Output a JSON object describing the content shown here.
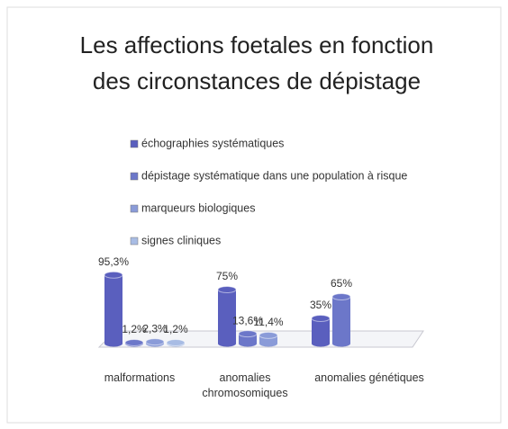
{
  "chart_data": {
    "type": "bar",
    "title": "Les affections foetales en fonction des circonstances de dépistage",
    "categories": [
      "malformations",
      "anomalies chromosomiques",
      "anomalies génétiques"
    ],
    "series": [
      {
        "name": "échographies systématiques",
        "color": "#5a5fbe",
        "values": [
          95.3,
          75,
          35
        ],
        "value_labels": [
          "95,3%",
          "75%",
          "35%"
        ]
      },
      {
        "name": "dépistage systématique dans une population à risque",
        "color": "#6c77c9",
        "values": [
          1.2,
          13.6,
          65
        ],
        "value_labels": [
          "1,2%",
          "13,6%",
          "65%"
        ]
      },
      {
        "name": "marqueurs biologiques",
        "color": "#8a9bd8",
        "values": [
          2.3,
          11.4,
          null
        ],
        "value_labels": [
          "2,3%",
          "11,4%",
          null
        ]
      },
      {
        "name": "signes cliniques",
        "color": "#a8bce4",
        "values": [
          1.2,
          null,
          null
        ],
        "value_labels": [
          "1,2%",
          null,
          null
        ]
      }
    ]
  }
}
